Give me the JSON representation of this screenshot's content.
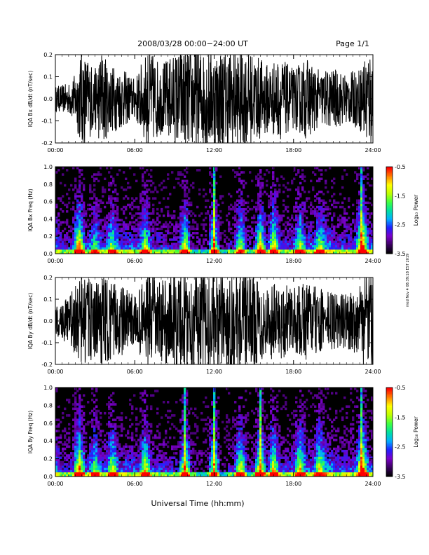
{
  "header": {
    "date_range": "2008/03/28  00:00−24:00 UT",
    "page": "Page 1/1"
  },
  "footer": {
    "xlabel": "Universal Time (hh:mm)"
  },
  "side_note": "mkd Nov 4 08:39:18 EST 2019",
  "colorbar": {
    "label": "Log₁₀ Power",
    "ticks": [
      "-0.5",
      "-1.5",
      "-2.5",
      "-3.5"
    ],
    "range": [
      -3.5,
      -0.5
    ],
    "colors": [
      "#000000",
      "#3a0060",
      "#7a00c8",
      "#2020ff",
      "#00b0ff",
      "#00e0a0",
      "#40ff40",
      "#c0ff00",
      "#ffff00",
      "#ff8000",
      "#ff0000"
    ]
  },
  "chart_data": [
    {
      "type": "line",
      "panel": "bx_dbdt",
      "ylabel": "IQA Bx dB/dt (nT/sec)",
      "xlim": [
        0,
        24
      ],
      "ylim": [
        -0.2,
        0.2
      ],
      "xticks": [
        "00:00",
        "06:00",
        "12:00",
        "18:00",
        "24:00"
      ],
      "yticks": [
        "0.2",
        "0.1",
        "0.0",
        "-0.1",
        "-0.2"
      ],
      "amplitude_envelope": {
        "t": [
          0,
          1,
          1.5,
          2,
          3,
          3.5,
          4,
          5,
          6,
          7,
          8,
          9,
          9.5,
          10,
          11,
          12,
          13,
          14,
          15,
          16,
          17,
          18,
          19,
          20,
          21,
          22,
          23,
          23.5,
          24
        ],
        "amp": [
          0.05,
          0.06,
          0.1,
          0.2,
          0.12,
          0.2,
          0.14,
          0.12,
          0.08,
          0.2,
          0.14,
          0.18,
          0.2,
          0.2,
          0.2,
          0.2,
          0.2,
          0.2,
          0.18,
          0.14,
          0.16,
          0.12,
          0.16,
          0.11,
          0.12,
          0.1,
          0.12,
          0.2,
          0.2
        ]
      }
    },
    {
      "type": "heatmap",
      "panel": "bx_freq",
      "ylabel": "IQA Bx Freq (Hz)",
      "xlim": [
        0,
        24
      ],
      "ylim": [
        0,
        1.0
      ],
      "xticks": [
        "00:00",
        "06:00",
        "12:00",
        "18:00",
        "24:00"
      ],
      "yticks": [
        "1.0",
        "0.8",
        "0.6",
        "0.4",
        "0.2",
        "0.0"
      ],
      "activity": {
        "t": [
          0,
          1.8,
          3,
          4.3,
          6.8,
          9.8,
          12,
          14,
          15.5,
          16.5,
          18.5,
          20,
          23.2
        ],
        "level": [
          0.2,
          0.9,
          0.4,
          0.5,
          0.6,
          0.8,
          0.9,
          0.7,
          0.8,
          0.8,
          0.6,
          0.5,
          1.0
        ]
      }
    },
    {
      "type": "line",
      "panel": "by_dbdt",
      "ylabel": "IQA By dB/dt (nT/sec)",
      "xlim": [
        0,
        24
      ],
      "ylim": [
        -0.2,
        0.2
      ],
      "xticks": [
        "00:00",
        "06:00",
        "12:00",
        "18:00",
        "24:00"
      ],
      "yticks": [
        "0.2",
        "0.1",
        "0.0",
        "-0.1",
        "-0.2"
      ],
      "amplitude_envelope": {
        "t": [
          0,
          1,
          1.5,
          2,
          3,
          3.5,
          4,
          5,
          6,
          7,
          8,
          9,
          9.5,
          10,
          11,
          12,
          13,
          14,
          15,
          16,
          17,
          18,
          19,
          20,
          21,
          22,
          23,
          23.5,
          24
        ],
        "amp": [
          0.06,
          0.1,
          0.14,
          0.2,
          0.14,
          0.2,
          0.16,
          0.14,
          0.1,
          0.2,
          0.16,
          0.2,
          0.2,
          0.2,
          0.2,
          0.2,
          0.2,
          0.2,
          0.18,
          0.15,
          0.16,
          0.13,
          0.16,
          0.13,
          0.12,
          0.11,
          0.14,
          0.2,
          0.2
        ]
      }
    },
    {
      "type": "heatmap",
      "panel": "by_freq",
      "ylabel": "IQA By Freq (Hz)",
      "xlim": [
        0,
        24
      ],
      "ylim": [
        0,
        1.0
      ],
      "xticks": [
        "00:00",
        "06:00",
        "12:00",
        "18:00",
        "24:00"
      ],
      "yticks": [
        "1.0",
        "0.8",
        "0.6",
        "0.4",
        "0.2",
        "0.0"
      ],
      "activity": {
        "t": [
          0,
          1.8,
          3,
          4.3,
          6.8,
          9.8,
          12,
          14,
          15.5,
          16.5,
          18.5,
          20,
          23.2
        ],
        "level": [
          0.3,
          0.9,
          0.5,
          0.6,
          0.7,
          0.9,
          0.9,
          0.8,
          0.9,
          0.8,
          0.7,
          0.6,
          1.0
        ]
      }
    }
  ]
}
